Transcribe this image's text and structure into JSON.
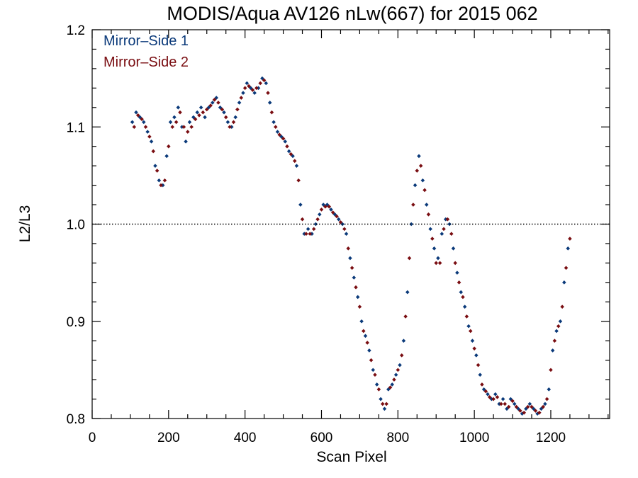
{
  "chart_data": {
    "type": "scatter",
    "title": "MODIS/Aqua AV126 nLw(667) for 2015 062",
    "xlabel": "Scan Pixel",
    "ylabel": "L2/L3",
    "xlim": [
      0,
      1354
    ],
    "ylim": [
      0.8,
      1.2
    ],
    "xticks": [
      0,
      200,
      400,
      600,
      800,
      1000,
      1200
    ],
    "xtick_labels": [
      "0",
      "200",
      "400",
      "600",
      "800",
      "1000",
      "1200"
    ],
    "yticks": [
      0.8,
      0.9,
      1.0,
      1.1,
      1.2
    ],
    "ytick_labels": [
      "0.8",
      "0.9",
      "1.0",
      "1.1",
      "1.2"
    ],
    "reference_line": {
      "y": 1.0,
      "style": "dotted"
    },
    "grid": false,
    "legend_position": "top-left",
    "series": [
      {
        "name": "Mirror–Side 1",
        "color": "#0b3a7a",
        "x": [
          105,
          115,
          125,
          135,
          145,
          155,
          165,
          175,
          185,
          195,
          205,
          215,
          225,
          235,
          245,
          255,
          265,
          275,
          285,
          295,
          305,
          315,
          325,
          335,
          345,
          355,
          365,
          375,
          385,
          395,
          405,
          415,
          425,
          435,
          445,
          455,
          465,
          475,
          485,
          495,
          505,
          515,
          525,
          535,
          545,
          555,
          565,
          575,
          585,
          595,
          605,
          615,
          625,
          635,
          645,
          655,
          665,
          675,
          685,
          695,
          705,
          715,
          725,
          735,
          745,
          755,
          765,
          775,
          785,
          795,
          805,
          815,
          825,
          835,
          845,
          855,
          865,
          875,
          885,
          895,
          905,
          915,
          925,
          935,
          945,
          955,
          965,
          975,
          985,
          995,
          1005,
          1015,
          1025,
          1035,
          1045,
          1055,
          1065,
          1075,
          1085,
          1095,
          1105,
          1115,
          1125,
          1135,
          1145,
          1155,
          1165,
          1175,
          1185,
          1195,
          1205,
          1215,
          1225,
          1235,
          1245
        ],
        "y": [
          1.105,
          1.115,
          1.11,
          1.105,
          1.095,
          1.085,
          1.06,
          1.045,
          1.04,
          1.07,
          1.105,
          1.11,
          1.12,
          1.1,
          1.085,
          1.105,
          1.11,
          1.115,
          1.12,
          1.11,
          1.12,
          1.125,
          1.13,
          1.12,
          1.115,
          1.105,
          1.1,
          1.11,
          1.125,
          1.135,
          1.145,
          1.14,
          1.135,
          1.14,
          1.15,
          1.145,
          1.125,
          1.105,
          1.095,
          1.09,
          1.085,
          1.075,
          1.07,
          1.06,
          1.02,
          0.99,
          0.995,
          0.99,
          1.0,
          1.01,
          1.02,
          1.02,
          1.015,
          1.01,
          1.005,
          1.0,
          0.99,
          0.965,
          0.945,
          0.925,
          0.9,
          0.885,
          0.87,
          0.85,
          0.835,
          0.82,
          0.81,
          0.83,
          0.835,
          0.845,
          0.855,
          0.88,
          0.93,
          1.0,
          1.04,
          1.07,
          1.045,
          1.02,
          0.995,
          0.975,
          0.965,
          0.99,
          1.005,
          1.0,
          0.975,
          0.95,
          0.93,
          0.915,
          0.895,
          0.88,
          0.865,
          0.845,
          0.83,
          0.825,
          0.82,
          0.825,
          0.815,
          0.82,
          0.81,
          0.82,
          0.815,
          0.81,
          0.805,
          0.81,
          0.815,
          0.81,
          0.805,
          0.81,
          0.815,
          0.83,
          0.87,
          0.89,
          0.9,
          0.94,
          0.975
        ]
      },
      {
        "name": "Mirror–Side 2",
        "color": "#7a0e12",
        "x": [
          110,
          120,
          130,
          140,
          150,
          160,
          170,
          180,
          190,
          200,
          210,
          220,
          230,
          240,
          250,
          260,
          270,
          280,
          290,
          300,
          310,
          320,
          330,
          340,
          350,
          360,
          370,
          380,
          390,
          400,
          410,
          420,
          430,
          440,
          450,
          460,
          470,
          480,
          490,
          500,
          510,
          520,
          530,
          540,
          550,
          560,
          570,
          580,
          590,
          600,
          610,
          620,
          630,
          640,
          650,
          660,
          670,
          680,
          690,
          700,
          710,
          720,
          730,
          740,
          750,
          760,
          770,
          780,
          790,
          800,
          810,
          820,
          830,
          840,
          850,
          860,
          870,
          880,
          890,
          900,
          910,
          920,
          930,
          940,
          950,
          960,
          970,
          980,
          990,
          1000,
          1010,
          1020,
          1030,
          1040,
          1050,
          1060,
          1070,
          1080,
          1090,
          1100,
          1110,
          1120,
          1130,
          1140,
          1150,
          1160,
          1170,
          1180,
          1190,
          1200,
          1210,
          1220,
          1230,
          1240,
          1250
        ],
        "y": [
          1.1,
          1.112,
          1.108,
          1.1,
          1.09,
          1.075,
          1.055,
          1.04,
          1.045,
          1.08,
          1.1,
          1.105,
          1.115,
          1.1,
          1.095,
          1.1,
          1.108,
          1.112,
          1.115,
          1.118,
          1.122,
          1.128,
          1.125,
          1.118,
          1.11,
          1.1,
          1.105,
          1.118,
          1.13,
          1.14,
          1.142,
          1.138,
          1.14,
          1.145,
          1.148,
          1.135,
          1.115,
          1.1,
          1.092,
          1.088,
          1.08,
          1.072,
          1.065,
          1.045,
          1.005,
          0.99,
          0.99,
          0.995,
          1.005,
          1.015,
          1.018,
          1.018,
          1.012,
          1.008,
          1.002,
          0.995,
          0.975,
          0.955,
          0.935,
          0.915,
          0.89,
          0.878,
          0.86,
          0.845,
          0.83,
          0.815,
          0.815,
          0.832,
          0.84,
          0.85,
          0.865,
          0.905,
          0.965,
          1.02,
          1.055,
          1.06,
          1.035,
          1.01,
          0.985,
          0.96,
          0.96,
          0.995,
          1.005,
          0.99,
          0.96,
          0.94,
          0.925,
          0.905,
          0.89,
          0.872,
          0.855,
          0.835,
          0.828,
          0.822,
          0.82,
          0.822,
          0.815,
          0.815,
          0.812,
          0.818,
          0.812,
          0.808,
          0.806,
          0.812,
          0.812,
          0.808,
          0.806,
          0.812,
          0.82,
          0.85,
          0.88,
          0.895,
          0.915,
          0.955,
          0.985
        ]
      }
    ]
  }
}
